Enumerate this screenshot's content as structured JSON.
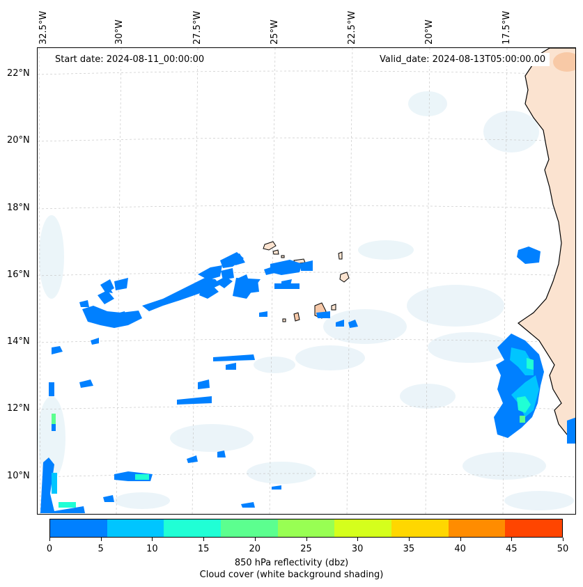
{
  "header": {
    "start_date": "Start date: 2024-08-11_00:00:00",
    "valid_date": "Valid_date: 2024-08-13T05:00:00.00"
  },
  "axes": {
    "lon_labels": [
      "32.5°W",
      "30°W",
      "27.5°W",
      "25°W",
      "22.5°W",
      "20°W",
      "17.5°W"
    ],
    "lat_labels": [
      "22°N",
      "20°N",
      "18°N",
      "16°N",
      "14°N",
      "12°N",
      "10°N"
    ]
  },
  "colorbar": {
    "ticks": [
      "0",
      "5",
      "10",
      "15",
      "20",
      "25",
      "30",
      "35",
      "40",
      "45",
      "50"
    ],
    "colors": [
      "#0080ff",
      "#00c5ff",
      "#20ffd5",
      "#5cff8f",
      "#98ff53",
      "#d5ff1c",
      "#ffd700",
      "#ff8c00",
      "#ff4500"
    ],
    "label_line1": "850 hPa reflectivity (dbz)",
    "label_line2": "Cloud cover (white background shading)"
  },
  "map": {
    "land_color": "#fbe3d0",
    "coast_color": "#000000",
    "echo_color": "#0080ff",
    "cloud_color": "#e8f3f8"
  }
}
